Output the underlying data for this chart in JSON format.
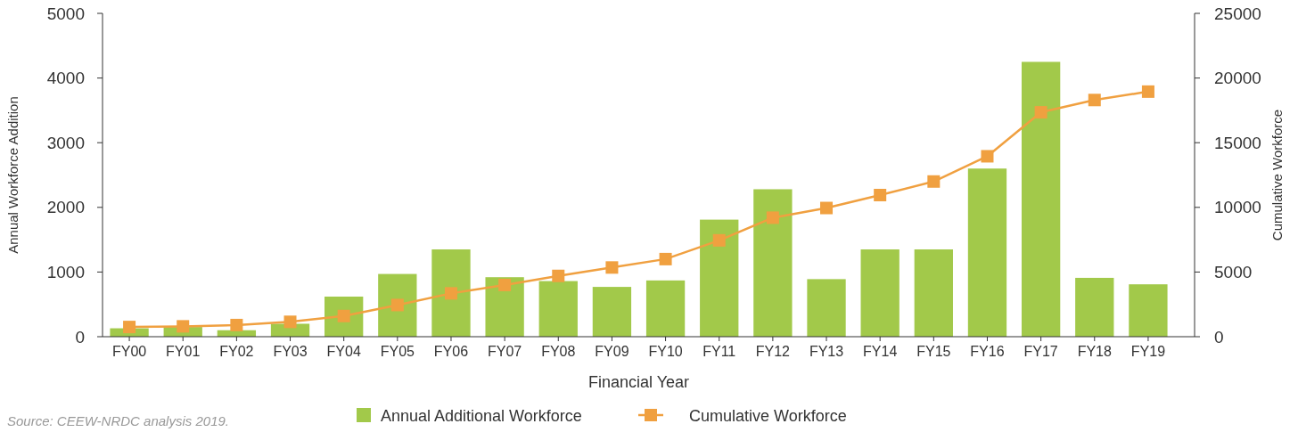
{
  "chart_data": {
    "type": "bar",
    "xlabel": "Financial Year",
    "ylabel": "Annual Workforce Addition",
    "y2label": "Cumulative Workforce",
    "categories": [
      "FY00",
      "FY01",
      "FY02",
      "FY03",
      "FY04",
      "FY05",
      "FY06",
      "FY07",
      "FY08",
      "FY09",
      "FY10",
      "FY11",
      "FY12",
      "FY13",
      "FY14",
      "FY15",
      "FY16",
      "FY17",
      "FY18",
      "FY19"
    ],
    "series": [
      {
        "name": "Annual Additional Workforce",
        "color": "#a2c94a",
        "values": [
          130,
          150,
          100,
          200,
          620,
          970,
          1350,
          920,
          860,
          770,
          870,
          1810,
          2280,
          890,
          1350,
          1350,
          2600,
          4250,
          910,
          810
        ]
      },
      {
        "name": "Cumulative Workforce",
        "type": "line",
        "axis": "y2",
        "color": "#f0a040",
        "marker": "square",
        "values": [
          750,
          800,
          900,
          1150,
          1600,
          2450,
          3350,
          4000,
          4700,
          5350,
          6000,
          7450,
          9200,
          9950,
          10950,
          12000,
          13950,
          17350,
          18300,
          18950
        ]
      }
    ],
    "ylim": [
      0,
      5000
    ],
    "yticks": [
      0,
      1000,
      2000,
      3000,
      4000,
      5000
    ],
    "y2lim": [
      0,
      25000
    ],
    "y2ticks": [
      0,
      5000,
      10000,
      15000,
      20000,
      25000
    ],
    "grid": false,
    "legend": "bottom",
    "annotations": [
      "Source: CEEW-NRDC analysis 2019."
    ]
  }
}
